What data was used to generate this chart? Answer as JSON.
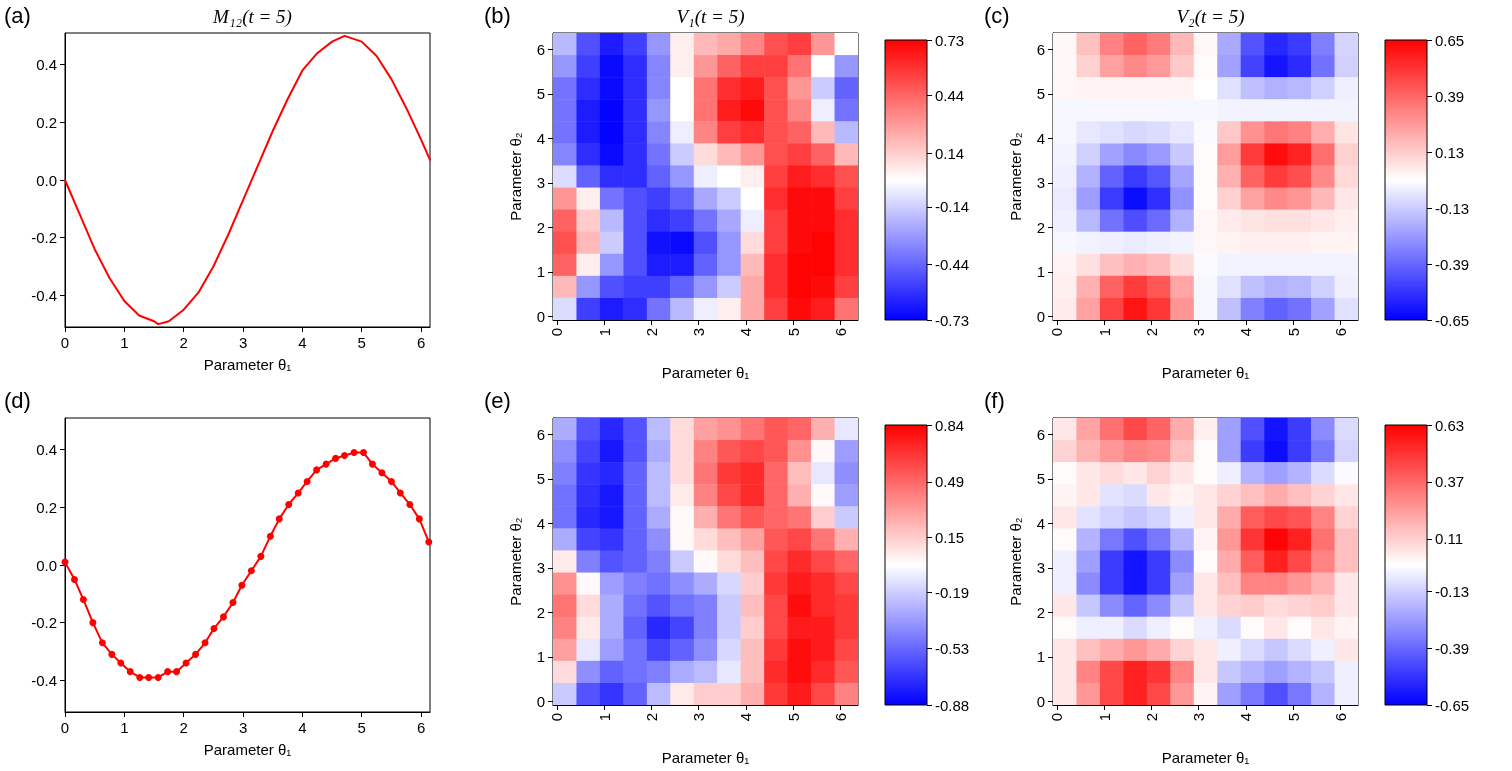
{
  "chart_data": [
    {
      "type": "line",
      "title": "M₁₂(t = 5)",
      "xlabel": "Parameter θ₁",
      "annotations": [
        "(a)"
      ],
      "x": [
        0,
        0.25,
        0.5,
        0.75,
        1,
        1.25,
        1.5,
        1.57,
        1.75,
        2,
        2.25,
        2.5,
        2.75,
        3,
        3.25,
        3.5,
        3.75,
        4,
        4.25,
        4.5,
        4.71,
        5,
        5.25,
        5.5,
        5.75,
        6,
        6.15
      ],
      "series": [
        {
          "color": "#ff0000",
          "values": [
            0,
            -0.12,
            -0.24,
            -0.34,
            -0.42,
            -0.47,
            -0.49,
            -0.5,
            -0.49,
            -0.45,
            -0.39,
            -0.3,
            -0.19,
            -0.07,
            0.05,
            0.17,
            0.28,
            0.38,
            0.44,
            0.48,
            0.5,
            0.48,
            0.43,
            0.35,
            0.25,
            0.14,
            0.07
          ]
        }
      ],
      "xlim": [
        0,
        6.15
      ],
      "xticks": [
        0,
        1,
        2,
        3,
        4,
        5,
        6
      ],
      "ylim": [
        -0.51,
        0.51
      ],
      "yticks": [
        -0.4,
        -0.2,
        {
          "value": 0,
          "label": "0.0"
        },
        0.2,
        0.4
      ],
      "marker": "none",
      "grid": false
    },
    {
      "type": "heatmap",
      "title": "V₁(t = 5)",
      "xlabel": "Parameter θ₁",
      "ylabel": "Parameter θ₂",
      "annotations": [
        "(b)"
      ],
      "cells": [
        [
          -0.2,
          -0.5,
          -0.65,
          -0.55,
          -0.3,
          0.05,
          0.2,
          0.25,
          0.35,
          0.5,
          0.55,
          0.3,
          0.0
        ],
        [
          -0.3,
          -0.55,
          -0.7,
          -0.6,
          -0.35,
          0.05,
          0.3,
          0.45,
          0.55,
          0.55,
          0.4,
          0.0,
          -0.3
        ],
        [
          -0.4,
          -0.6,
          -0.7,
          -0.6,
          -0.35,
          0.0,
          0.4,
          0.6,
          0.65,
          0.5,
          0.3,
          -0.15,
          -0.45
        ],
        [
          -0.4,
          -0.65,
          -0.72,
          -0.6,
          -0.3,
          0.0,
          0.4,
          0.65,
          0.7,
          0.5,
          0.35,
          -0.05,
          -0.4
        ],
        [
          -0.4,
          -0.65,
          -0.72,
          -0.6,
          -0.35,
          -0.05,
          0.35,
          0.55,
          0.6,
          0.5,
          0.45,
          0.2,
          -0.2
        ],
        [
          -0.35,
          -0.6,
          -0.7,
          -0.6,
          -0.4,
          -0.15,
          0.1,
          0.2,
          0.3,
          0.5,
          0.55,
          0.45,
          0.2
        ],
        [
          -0.1,
          -0.45,
          -0.6,
          -0.6,
          -0.45,
          -0.3,
          -0.05,
          0.0,
          0.05,
          0.55,
          0.65,
          0.6,
          0.5
        ],
        [
          0.3,
          0.05,
          -0.4,
          -0.5,
          -0.55,
          -0.45,
          -0.25,
          -0.15,
          0.0,
          0.6,
          0.7,
          0.7,
          0.55
        ],
        [
          0.45,
          0.15,
          -0.2,
          -0.5,
          -0.6,
          -0.55,
          -0.4,
          -0.25,
          -0.05,
          0.55,
          0.7,
          0.7,
          0.6
        ],
        [
          0.5,
          0.2,
          -0.15,
          -0.5,
          -0.68,
          -0.7,
          -0.5,
          -0.3,
          0.1,
          0.55,
          0.7,
          0.72,
          0.6
        ],
        [
          0.45,
          0.05,
          -0.3,
          -0.5,
          -0.65,
          -0.65,
          -0.45,
          -0.3,
          0.2,
          0.6,
          0.72,
          0.72,
          0.6
        ],
        [
          0.2,
          -0.3,
          -0.5,
          -0.55,
          -0.55,
          -0.45,
          -0.3,
          -0.15,
          0.25,
          0.6,
          0.72,
          0.7,
          0.55
        ],
        [
          -0.1,
          -0.55,
          -0.65,
          -0.6,
          -0.4,
          -0.2,
          -0.05,
          0.05,
          0.25,
          0.55,
          0.7,
          0.65,
          0.4
        ]
      ],
      "xlim": [
        -0.08,
        6.37
      ],
      "xticks": [
        0,
        1,
        2,
        3,
        4,
        5,
        6
      ],
      "ylim": [
        -0.08,
        6.37
      ],
      "yticks": [
        0,
        1,
        2,
        3,
        4,
        5,
        6
      ],
      "clim": [
        -0.73,
        0.73
      ],
      "cticks": [
        -0.73,
        -0.44,
        -0.14,
        0.14,
        0.44,
        0.73
      ]
    },
    {
      "type": "heatmap",
      "title": "V₂(t = 5)",
      "xlabel": "Parameter θ₁",
      "ylabel": "Parameter θ₂",
      "annotations": [
        "(c)"
      ],
      "cells": [
        [
          0.02,
          0.16,
          0.32,
          0.4,
          0.34,
          0.18,
          0.02,
          -0.22,
          -0.44,
          -0.55,
          -0.5,
          -0.33,
          -0.11
        ],
        [
          0.02,
          0.12,
          0.24,
          0.3,
          0.26,
          0.14,
          0.01,
          -0.24,
          -0.48,
          -0.6,
          -0.54,
          -0.36,
          -0.12
        ],
        [
          0.02,
          0.03,
          0.03,
          0.03,
          0.03,
          0.03,
          0.0,
          -0.08,
          -0.16,
          -0.2,
          -0.18,
          -0.12,
          -0.04
        ],
        [
          -0.02,
          -0.02,
          -0.02,
          -0.02,
          -0.02,
          -0.02,
          -0.02,
          -0.03,
          -0.03,
          -0.03,
          -0.03,
          -0.03,
          -0.03
        ],
        [
          -0.02,
          -0.06,
          -0.08,
          -0.1,
          -0.09,
          -0.06,
          -0.01,
          0.14,
          0.28,
          0.35,
          0.32,
          0.21,
          0.07
        ],
        [
          -0.03,
          -0.12,
          -0.24,
          -0.3,
          -0.26,
          -0.14,
          0.01,
          0.25,
          0.5,
          0.62,
          0.56,
          0.37,
          0.12
        ],
        [
          -0.04,
          -0.2,
          -0.4,
          -0.5,
          -0.43,
          -0.23,
          0.01,
          0.2,
          0.4,
          0.5,
          0.45,
          0.3,
          0.1
        ],
        [
          -0.05,
          -0.25,
          -0.5,
          -0.62,
          -0.53,
          -0.28,
          0.01,
          0.12,
          0.24,
          0.3,
          0.27,
          0.18,
          0.06
        ],
        [
          -0.04,
          -0.18,
          -0.36,
          -0.45,
          -0.38,
          -0.2,
          0.02,
          0.05,
          0.07,
          0.08,
          0.08,
          0.06,
          0.04
        ],
        [
          -0.02,
          -0.03,
          -0.04,
          -0.05,
          -0.04,
          -0.03,
          0.02,
          0.03,
          0.04,
          0.04,
          0.04,
          0.03,
          0.03
        ],
        [
          0.03,
          0.08,
          0.16,
          0.2,
          0.17,
          0.09,
          -0.01,
          -0.03,
          -0.03,
          -0.03,
          -0.03,
          -0.03,
          -0.03
        ],
        [
          0.04,
          0.2,
          0.4,
          0.5,
          0.43,
          0.23,
          -0.02,
          -0.08,
          -0.16,
          -0.2,
          -0.18,
          -0.12,
          -0.04
        ],
        [
          0.05,
          0.24,
          0.48,
          0.6,
          0.51,
          0.27,
          -0.02,
          -0.16,
          -0.32,
          -0.4,
          -0.36,
          -0.24,
          -0.08
        ]
      ],
      "xlim": [
        -0.08,
        6.37
      ],
      "xticks": [
        0,
        1,
        2,
        3,
        4,
        5,
        6
      ],
      "ylim": [
        -0.08,
        6.37
      ],
      "yticks": [
        0,
        1,
        2,
        3,
        4,
        5,
        6
      ],
      "clim": [
        -0.65,
        0.65
      ],
      "cticks": [
        -0.65,
        -0.39,
        -0.13,
        0.13,
        0.39,
        0.65
      ]
    },
    {
      "type": "line",
      "xlabel": "Parameter θ₁",
      "annotations": [
        "(d)"
      ],
      "x": [
        0,
        0.16,
        0.31,
        0.47,
        0.63,
        0.79,
        0.94,
        1.1,
        1.26,
        1.41,
        1.57,
        1.73,
        1.88,
        2.04,
        2.2,
        2.36,
        2.51,
        2.67,
        2.83,
        2.98,
        3.14,
        3.3,
        3.46,
        3.61,
        3.77,
        3.93,
        4.08,
        4.24,
        4.4,
        4.56,
        4.71,
        4.87,
        5.03,
        5.18,
        5.34,
        5.5,
        5.65,
        5.81,
        5.97,
        6.13
      ],
      "series": [
        {
          "color": "#ff0000",
          "values": [
            0.01,
            -0.05,
            -0.12,
            -0.2,
            -0.27,
            -0.31,
            -0.34,
            -0.37,
            -0.39,
            -0.39,
            -0.39,
            -0.37,
            -0.37,
            -0.34,
            -0.31,
            -0.27,
            -0.22,
            -0.18,
            -0.13,
            -0.07,
            -0.02,
            0.03,
            0.1,
            0.16,
            0.21,
            0.25,
            0.29,
            0.33,
            0.35,
            0.37,
            0.38,
            0.39,
            0.39,
            0.35,
            0.32,
            0.29,
            0.25,
            0.21,
            0.16,
            0.08
          ]
        }
      ],
      "xlim": [
        0,
        6.15
      ],
      "xticks": [
        0,
        1,
        2,
        3,
        4,
        5,
        6
      ],
      "ylim": [
        -0.51,
        0.51
      ],
      "yticks": [
        -0.4,
        -0.2,
        {
          "value": 0,
          "label": "0.0"
        },
        0.2,
        0.4
      ],
      "marker": "circle",
      "grid": false
    },
    {
      "type": "heatmap",
      "xlabel": "Parameter θ₁",
      "ylabel": "Parameter θ₂",
      "annotations": [
        "(e)"
      ],
      "cells": [
        [
          -0.3,
          -0.6,
          -0.75,
          -0.6,
          -0.25,
          0.1,
          0.3,
          0.35,
          0.45,
          0.55,
          0.5,
          0.25,
          -0.1
        ],
        [
          -0.4,
          -0.65,
          -0.8,
          -0.6,
          -0.3,
          0.1,
          0.4,
          0.55,
          0.6,
          0.55,
          0.35,
          0.0,
          -0.35
        ],
        [
          -0.45,
          -0.7,
          -0.75,
          -0.55,
          -0.25,
          0.1,
          0.45,
          0.65,
          0.7,
          0.5,
          0.2,
          -0.1,
          -0.4
        ],
        [
          -0.5,
          -0.72,
          -0.8,
          -0.55,
          -0.25,
          0.05,
          0.4,
          0.6,
          0.7,
          0.5,
          0.25,
          0.0,
          -0.35
        ],
        [
          -0.5,
          -0.75,
          -0.8,
          -0.55,
          -0.3,
          0.0,
          0.25,
          0.45,
          0.55,
          0.5,
          0.45,
          0.15,
          -0.2
        ],
        [
          -0.3,
          -0.65,
          -0.7,
          -0.55,
          -0.4,
          0.0,
          0.1,
          0.2,
          0.3,
          0.55,
          0.6,
          0.45,
          0.25
        ],
        [
          0.05,
          -0.45,
          -0.6,
          -0.55,
          -0.45,
          -0.2,
          0.0,
          0.1,
          0.2,
          0.6,
          0.7,
          0.6,
          0.5
        ],
        [
          0.35,
          0.0,
          -0.35,
          -0.45,
          -0.5,
          -0.4,
          -0.3,
          -0.15,
          0.15,
          0.65,
          0.75,
          0.7,
          0.6
        ],
        [
          0.45,
          0.1,
          -0.3,
          -0.5,
          -0.6,
          -0.5,
          -0.45,
          -0.2,
          0.2,
          0.6,
          0.8,
          0.7,
          0.65
        ],
        [
          0.4,
          0.05,
          -0.3,
          -0.55,
          -0.75,
          -0.65,
          -0.45,
          -0.2,
          0.15,
          0.6,
          0.75,
          0.75,
          0.65
        ],
        [
          0.3,
          -0.1,
          -0.35,
          -0.5,
          -0.65,
          -0.55,
          -0.4,
          -0.15,
          0.2,
          0.65,
          0.8,
          0.75,
          0.6
        ],
        [
          0.1,
          -0.4,
          -0.55,
          -0.5,
          -0.45,
          -0.3,
          -0.25,
          -0.1,
          0.2,
          0.7,
          0.8,
          0.7,
          0.55
        ],
        [
          -0.2,
          -0.6,
          -0.7,
          -0.55,
          -0.25,
          0.05,
          0.15,
          0.15,
          0.25,
          0.65,
          0.75,
          0.6,
          0.4
        ]
      ],
      "xlim": [
        -0.08,
        6.37
      ],
      "xticks": [
        0,
        1,
        2,
        3,
        4,
        5,
        6
      ],
      "ylim": [
        -0.08,
        6.37
      ],
      "yticks": [
        0,
        1,
        2,
        3,
        4,
        5,
        6
      ],
      "clim": [
        -0.88,
        0.84
      ],
      "cticks": [
        -0.88,
        -0.53,
        -0.19,
        0.15,
        0.49,
        0.84
      ]
    },
    {
      "type": "heatmap",
      "xlabel": "Parameter θ₁",
      "ylabel": "Parameter θ₂",
      "annotations": [
        "(f)"
      ],
      "cells": [
        [
          0.05,
          0.22,
          0.35,
          0.45,
          0.38,
          0.2,
          0.03,
          -0.25,
          -0.45,
          -0.6,
          -0.5,
          -0.3,
          -0.1
        ],
        [
          0.1,
          0.18,
          0.25,
          0.3,
          0.28,
          0.15,
          0.0,
          -0.25,
          -0.5,
          -0.62,
          -0.5,
          -0.35,
          -0.12
        ],
        [
          0.0,
          0.05,
          0.08,
          0.05,
          0.1,
          0.05,
          0.0,
          -0.05,
          -0.2,
          -0.25,
          -0.2,
          -0.1,
          -0.02
        ],
        [
          0.02,
          0.05,
          -0.08,
          -0.1,
          0.05,
          0.02,
          0.05,
          0.1,
          0.15,
          0.2,
          0.15,
          0.1,
          0.05
        ],
        [
          0.05,
          -0.08,
          -0.12,
          -0.15,
          -0.12,
          -0.05,
          0.05,
          0.2,
          0.4,
          0.45,
          0.42,
          0.3,
          0.1
        ],
        [
          0.0,
          -0.2,
          -0.35,
          -0.45,
          -0.35,
          -0.2,
          0.02,
          0.25,
          0.5,
          0.62,
          0.55,
          0.35,
          0.15
        ],
        [
          -0.05,
          -0.25,
          -0.5,
          -0.6,
          -0.5,
          -0.3,
          0.0,
          0.2,
          0.4,
          0.55,
          0.45,
          0.3,
          0.15
        ],
        [
          -0.05,
          -0.3,
          -0.5,
          -0.6,
          -0.5,
          -0.25,
          0.05,
          0.15,
          0.3,
          0.3,
          0.25,
          0.18,
          0.05
        ],
        [
          0.05,
          -0.15,
          -0.3,
          -0.4,
          -0.3,
          -0.15,
          0.05,
          0.1,
          0.12,
          0.08,
          0.1,
          0.12,
          0.05
        ],
        [
          0.0,
          -0.05,
          -0.05,
          -0.1,
          -0.05,
          0.0,
          -0.05,
          -0.1,
          0.0,
          0.05,
          0.0,
          0.05,
          0.02
        ],
        [
          0.05,
          0.15,
          0.2,
          0.25,
          0.2,
          0.1,
          0.05,
          -0.05,
          -0.1,
          -0.15,
          -0.1,
          -0.05,
          0.05
        ],
        [
          0.05,
          0.3,
          0.45,
          0.55,
          0.5,
          0.3,
          0.05,
          -0.15,
          -0.2,
          -0.25,
          -0.2,
          -0.15,
          -0.05
        ],
        [
          0.05,
          0.25,
          0.45,
          0.55,
          0.45,
          0.25,
          0.02,
          -0.25,
          -0.35,
          -0.45,
          -0.35,
          -0.2,
          -0.05
        ]
      ],
      "xlim": [
        -0.08,
        6.37
      ],
      "xticks": [
        0,
        1,
        2,
        3,
        4,
        5,
        6
      ],
      "ylim": [
        -0.08,
        6.37
      ],
      "yticks": [
        0,
        1,
        2,
        3,
        4,
        5,
        6
      ],
      "clim": [
        -0.65,
        0.63
      ],
      "cticks": [
        -0.65,
        -0.39,
        -0.13,
        0.11,
        0.37,
        0.63
      ]
    }
  ]
}
